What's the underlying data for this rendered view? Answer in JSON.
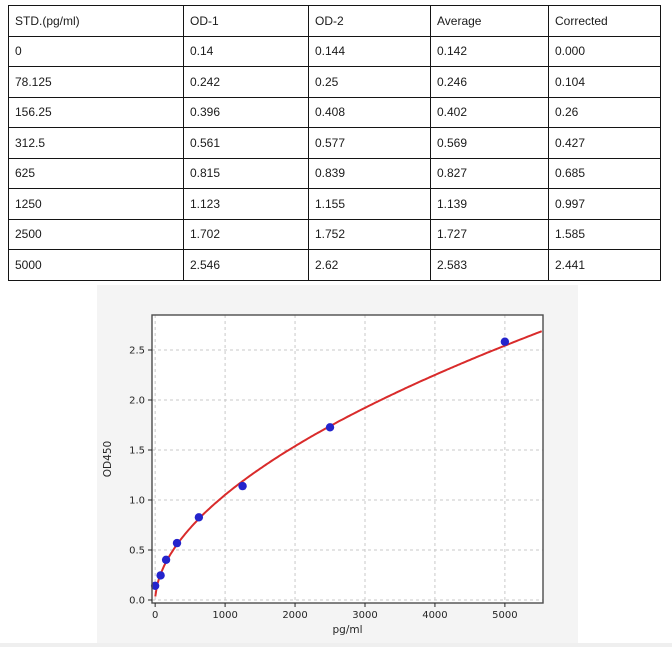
{
  "table": {
    "headers": [
      "STD.(pg/ml)",
      "OD-1",
      "OD-2",
      "Average",
      "Corrected"
    ],
    "rows": [
      [
        "0",
        "0.14",
        "0.144",
        "0.142",
        "0.000"
      ],
      [
        "78.125",
        "0.242",
        "0.25",
        "0.246",
        "0.104"
      ],
      [
        "156.25",
        "0.396",
        "0.408",
        "0.402",
        "0.26"
      ],
      [
        "312.5",
        "0.561",
        "0.577",
        "0.569",
        "0.427"
      ],
      [
        "625",
        "0.815",
        "0.839",
        "0.827",
        "0.685"
      ],
      [
        "1250",
        "1.123",
        "1.155",
        "1.139",
        "0.997"
      ],
      [
        "2500",
        "1.702",
        "1.752",
        "1.727",
        "1.585"
      ],
      [
        "5000",
        "2.546",
        "2.62",
        "2.583",
        "2.441"
      ]
    ]
  },
  "chart_data": {
    "type": "scatter",
    "title": "",
    "xlabel": "pg/ml",
    "ylabel": "OD450",
    "x": [
      0,
      78.125,
      156.25,
      312.5,
      625,
      1250,
      2500,
      5000
    ],
    "y": [
      0.142,
      0.246,
      0.402,
      0.569,
      0.827,
      1.139,
      1.727,
      2.583
    ],
    "fit_curve": {
      "type": "power",
      "a": 0.0237,
      "b": 0.549
    },
    "xticks": [
      0,
      1000,
      2000,
      3000,
      4000,
      5000
    ],
    "yticks": [
      0.0,
      0.5,
      1.0,
      1.5,
      2.0,
      2.5
    ],
    "xlim": [
      -45,
      5545
    ],
    "ylim": [
      -0.03,
      2.85
    ],
    "grid": true,
    "legend": "none",
    "colors": {
      "points": "#2424cc",
      "curve": "#d92b2b",
      "grid": "#c9c9c9",
      "panel_bg": "#f4f4f4",
      "plot_bg": "#ffffff",
      "spine": "#4d4d4d",
      "tick_text": "#262626"
    }
  }
}
